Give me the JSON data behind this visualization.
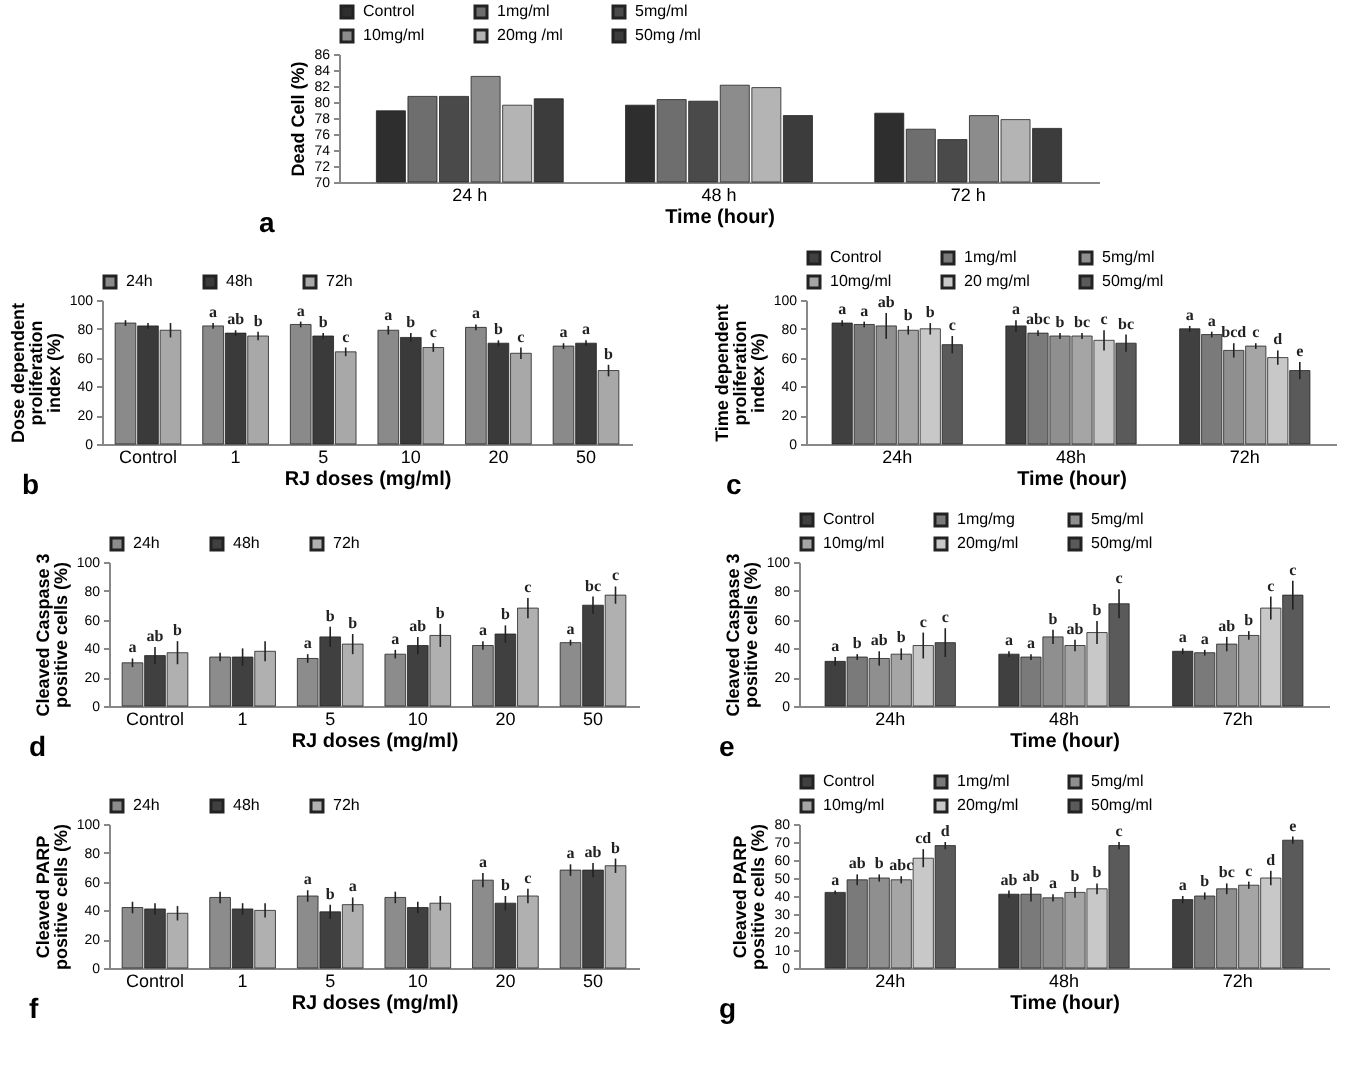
{
  "chart_data": [
    {
      "type": "bar",
      "annotations": [
        "a"
      ],
      "xlabel": "Time (hour)",
      "ylabel": "Dead Cell (%)",
      "categories": [
        "24 h",
        "48 h",
        "72 h"
      ],
      "ylim": [
        70,
        86
      ],
      "yticks": [
        70,
        72,
        74,
        76,
        78,
        80,
        82,
        84,
        86
      ],
      "legend": "top",
      "series": [
        {
          "name": "Control",
          "color": "#2e2e2e",
          "values": [
            78.9,
            79.6,
            78.6
          ]
        },
        {
          "name": "1mg/ml",
          "color": "#6e6e6e",
          "values": [
            80.7,
            80.3,
            76.6
          ]
        },
        {
          "name": "5mg/ml",
          "color": "#4a4a4a",
          "values": [
            80.7,
            80.1,
            75.3
          ]
        },
        {
          "name": "10mg/ml",
          "color": "#8c8c8c",
          "values": [
            83.2,
            82.1,
            78.3
          ]
        },
        {
          "name": "20mg /ml",
          "color": "#b4b4b4",
          "values": [
            79.6,
            81.8,
            77.8
          ]
        },
        {
          "name": "50mg /ml",
          "color": "#3c3c3c",
          "values": [
            80.4,
            78.3,
            76.7
          ]
        }
      ]
    },
    {
      "type": "bar",
      "annotations": [
        "b"
      ],
      "xlabel": "RJ doses (mg/ml)",
      "ylabel": "Dose dependent proliferation index (%)",
      "categories": [
        "Control",
        "1",
        "5",
        "10",
        "20",
        "50"
      ],
      "ylim": [
        0,
        100
      ],
      "yticks": [
        0,
        20,
        40,
        60,
        80,
        100
      ],
      "legend": "top",
      "series": [
        {
          "name": "24h",
          "color": "#8a8a8a",
          "values": [
            84,
            82,
            83,
            79,
            81,
            68
          ],
          "errors": [
            2,
            2,
            2,
            3,
            2,
            2
          ],
          "value_labels": [
            null,
            "a",
            "a",
            "a",
            "a",
            "a"
          ]
        },
        {
          "name": "48h",
          "color": "#3a3a3a",
          "values": [
            82,
            77,
            75,
            74,
            70,
            70
          ],
          "errors": [
            2,
            2,
            2,
            3,
            2,
            2
          ],
          "value_labels": [
            null,
            "ab",
            "b",
            "b",
            "b",
            "a"
          ]
        },
        {
          "name": "72h",
          "color": "#a8a8a8",
          "values": [
            79,
            75,
            64,
            67,
            63,
            51
          ],
          "errors": [
            5,
            3,
            3,
            3,
            4,
            4
          ],
          "value_labels": [
            null,
            "b",
            "c",
            "c",
            "c",
            "b"
          ]
        }
      ]
    },
    {
      "type": "bar",
      "annotations": [
        "c"
      ],
      "xlabel": "Time (hour)",
      "ylabel": "Time dependent proliferation index (%)",
      "categories": [
        "24h",
        "48h",
        "72h"
      ],
      "ylim": [
        0,
        100
      ],
      "yticks": [
        0,
        20,
        40,
        60,
        80,
        100
      ],
      "legend": "top",
      "series": [
        {
          "name": "Control",
          "color": "#404040",
          "values": [
            84,
            82,
            80
          ],
          "errors": [
            2,
            4,
            2
          ],
          "value_labels": [
            "a",
            "a",
            "a"
          ]
        },
        {
          "name": "1mg/ml",
          "color": "#7a7a7a",
          "values": [
            83,
            77,
            76
          ],
          "errors": [
            2,
            2,
            2
          ],
          "value_labels": [
            "a",
            "abc",
            "a"
          ]
        },
        {
          "name": "5mg/ml",
          "color": "#8f8f8f",
          "values": [
            82,
            75,
            65
          ],
          "errors": [
            9,
            2,
            5
          ],
          "value_labels": [
            "ab",
            "b",
            "bcd"
          ]
        },
        {
          "name": "10mg/ml",
          "color": "#a5a5a5",
          "values": [
            79,
            75,
            68
          ],
          "errors": [
            3,
            2,
            2
          ],
          "value_labels": [
            "b",
            "bc",
            "c"
          ]
        },
        {
          "name": "20 mg/ml",
          "color": "#c8c8c8",
          "values": [
            80,
            72,
            60
          ],
          "errors": [
            4,
            7,
            5
          ],
          "value_labels": [
            "b",
            "c",
            "d"
          ]
        },
        {
          "name": "50mg/ml",
          "color": "#5a5a5a",
          "values": [
            69,
            70,
            51
          ],
          "errors": [
            6,
            6,
            6
          ],
          "value_labels": [
            "c",
            "bc",
            "e"
          ]
        }
      ]
    },
    {
      "type": "bar",
      "annotations": [
        "d"
      ],
      "xlabel": "RJ doses (mg/ml)",
      "ylabel": "Cleaved Caspase 3 positive cells (%)",
      "categories": [
        "Control",
        "1",
        "5",
        "10",
        "20",
        "50"
      ],
      "ylim": [
        0,
        100
      ],
      "yticks": [
        0,
        20,
        40,
        60,
        80,
        100
      ],
      "legend": "top",
      "series": [
        {
          "name": "24h",
          "color": "#8c8c8c",
          "values": [
            30,
            34,
            33,
            36,
            42,
            44
          ],
          "errors": [
            3,
            3,
            3,
            3,
            3,
            2
          ],
          "value_labels": [
            "a",
            null,
            "a",
            "a",
            "a",
            "a"
          ]
        },
        {
          "name": "48h",
          "color": "#404040",
          "values": [
            35,
            34,
            48,
            42,
            50,
            70
          ],
          "errors": [
            6,
            6,
            7,
            6,
            6,
            6
          ],
          "value_labels": [
            "ab",
            null,
            "b",
            "ab",
            "b",
            "bc"
          ]
        },
        {
          "name": "72h",
          "color": "#b0b0b0",
          "values": [
            37,
            38,
            43,
            49,
            68,
            77
          ],
          "errors": [
            8,
            7,
            7,
            8,
            7,
            6
          ],
          "value_labels": [
            "b",
            null,
            "b",
            "b",
            "c",
            "c"
          ]
        }
      ]
    },
    {
      "type": "bar",
      "annotations": [
        "e"
      ],
      "xlabel": "Time (hour)",
      "ylabel": "Cleaved Caspase 3 positive cells (%)",
      "categories": [
        "24h",
        "48h",
        "72h"
      ],
      "ylim": [
        0,
        100
      ],
      "yticks": [
        0,
        20,
        40,
        60,
        80,
        100
      ],
      "legend": "top",
      "series": [
        {
          "name": "Control",
          "color": "#404040",
          "values": [
            31,
            36,
            38
          ],
          "errors": [
            3,
            2,
            2
          ],
          "value_labels": [
            "a",
            "a",
            "a"
          ]
        },
        {
          "name": "1mg/mg",
          "color": "#7a7a7a",
          "values": [
            34,
            34,
            37
          ],
          "errors": [
            2,
            2,
            2
          ],
          "value_labels": [
            "b",
            "a",
            "a"
          ]
        },
        {
          "name": "5mg/ml",
          "color": "#8f8f8f",
          "values": [
            33,
            48,
            43
          ],
          "errors": [
            5,
            5,
            5
          ],
          "value_labels": [
            "ab",
            "b",
            "ab"
          ]
        },
        {
          "name": "10mg/ml",
          "color": "#a5a5a5",
          "values": [
            36,
            42,
            49
          ],
          "errors": [
            4,
            4,
            3
          ],
          "value_labels": [
            "b",
            "ab",
            "b"
          ]
        },
        {
          "name": "20mg/ml",
          "color": "#c8c8c8",
          "values": [
            42,
            51,
            68
          ],
          "errors": [
            9,
            8,
            8
          ],
          "value_labels": [
            "c",
            "b",
            "c"
          ]
        },
        {
          "name": "50mg/ml",
          "color": "#5a5a5a",
          "values": [
            44,
            71,
            77
          ],
          "errors": [
            10,
            10,
            10
          ],
          "value_labels": [
            "c",
            "c",
            "c"
          ]
        }
      ]
    },
    {
      "type": "bar",
      "annotations": [
        "f"
      ],
      "xlabel": "RJ doses (mg/ml)",
      "ylabel": "Cleaved PARP positive cells (%)",
      "categories": [
        "Control",
        "1",
        "5",
        "10",
        "20",
        "50"
      ],
      "ylim": [
        0,
        100
      ],
      "yticks": [
        0,
        20,
        40,
        60,
        80,
        100
      ],
      "legend": "top",
      "series": [
        {
          "name": "24h",
          "color": "#8c8c8c",
          "values": [
            42,
            49,
            50,
            49,
            61,
            68
          ],
          "errors": [
            4,
            4,
            4,
            4,
            5,
            4
          ],
          "value_labels": [
            null,
            null,
            "a",
            null,
            "a",
            "a"
          ]
        },
        {
          "name": "48h",
          "color": "#404040",
          "values": [
            41,
            41,
            39,
            42,
            45,
            68
          ],
          "errors": [
            4,
            4,
            5,
            4,
            5,
            5
          ],
          "value_labels": [
            null,
            null,
            "b",
            null,
            "b",
            "ab"
          ]
        },
        {
          "name": "72h",
          "color": "#b0b0b0",
          "values": [
            38,
            40,
            44,
            45,
            50,
            71
          ],
          "errors": [
            5,
            5,
            5,
            5,
            5,
            5
          ],
          "value_labels": [
            null,
            null,
            "a",
            null,
            "c",
            "b"
          ]
        }
      ]
    },
    {
      "type": "bar",
      "annotations": [
        "g"
      ],
      "xlabel": "Time (hour)",
      "ylabel": "Cleaved PARP positive cells (%)",
      "categories": [
        "24h",
        "48h",
        "72h"
      ],
      "ylim": [
        0,
        80
      ],
      "yticks": [
        0,
        10,
        20,
        30,
        40,
        50,
        60,
        70,
        80
      ],
      "legend": "top",
      "series": [
        {
          "name": "Control",
          "color": "#404040",
          "values": [
            42,
            41,
            38
          ],
          "errors": [
            1,
            2,
            2
          ],
          "value_labels": [
            "a",
            "ab",
            "a"
          ]
        },
        {
          "name": "1mg/ml",
          "color": "#7a7a7a",
          "values": [
            49,
            41,
            40
          ],
          "errors": [
            3,
            4,
            2
          ],
          "value_labels": [
            "ab",
            "ab",
            "b"
          ]
        },
        {
          "name": "5mg/ml",
          "color": "#8f8f8f",
          "values": [
            50,
            39,
            44
          ],
          "errors": [
            2,
            2,
            3
          ],
          "value_labels": [
            "b",
            "a",
            "bc"
          ]
        },
        {
          "name": "10mg/ml",
          "color": "#a5a5a5",
          "values": [
            49,
            42,
            46
          ],
          "errors": [
            2,
            3,
            2
          ],
          "value_labels": [
            "abc",
            "b",
            "c"
          ]
        },
        {
          "name": "20mg/ml",
          "color": "#c8c8c8",
          "values": [
            61,
            44,
            50
          ],
          "errors": [
            5,
            3,
            4
          ],
          "value_labels": [
            "cd",
            "b",
            "d"
          ]
        },
        {
          "name": "50mg/ml",
          "color": "#5a5a5a",
          "values": [
            68,
            68,
            71
          ],
          "errors": [
            2,
            2,
            2
          ],
          "value_labels": [
            "d",
            "c",
            "e"
          ]
        }
      ]
    }
  ]
}
